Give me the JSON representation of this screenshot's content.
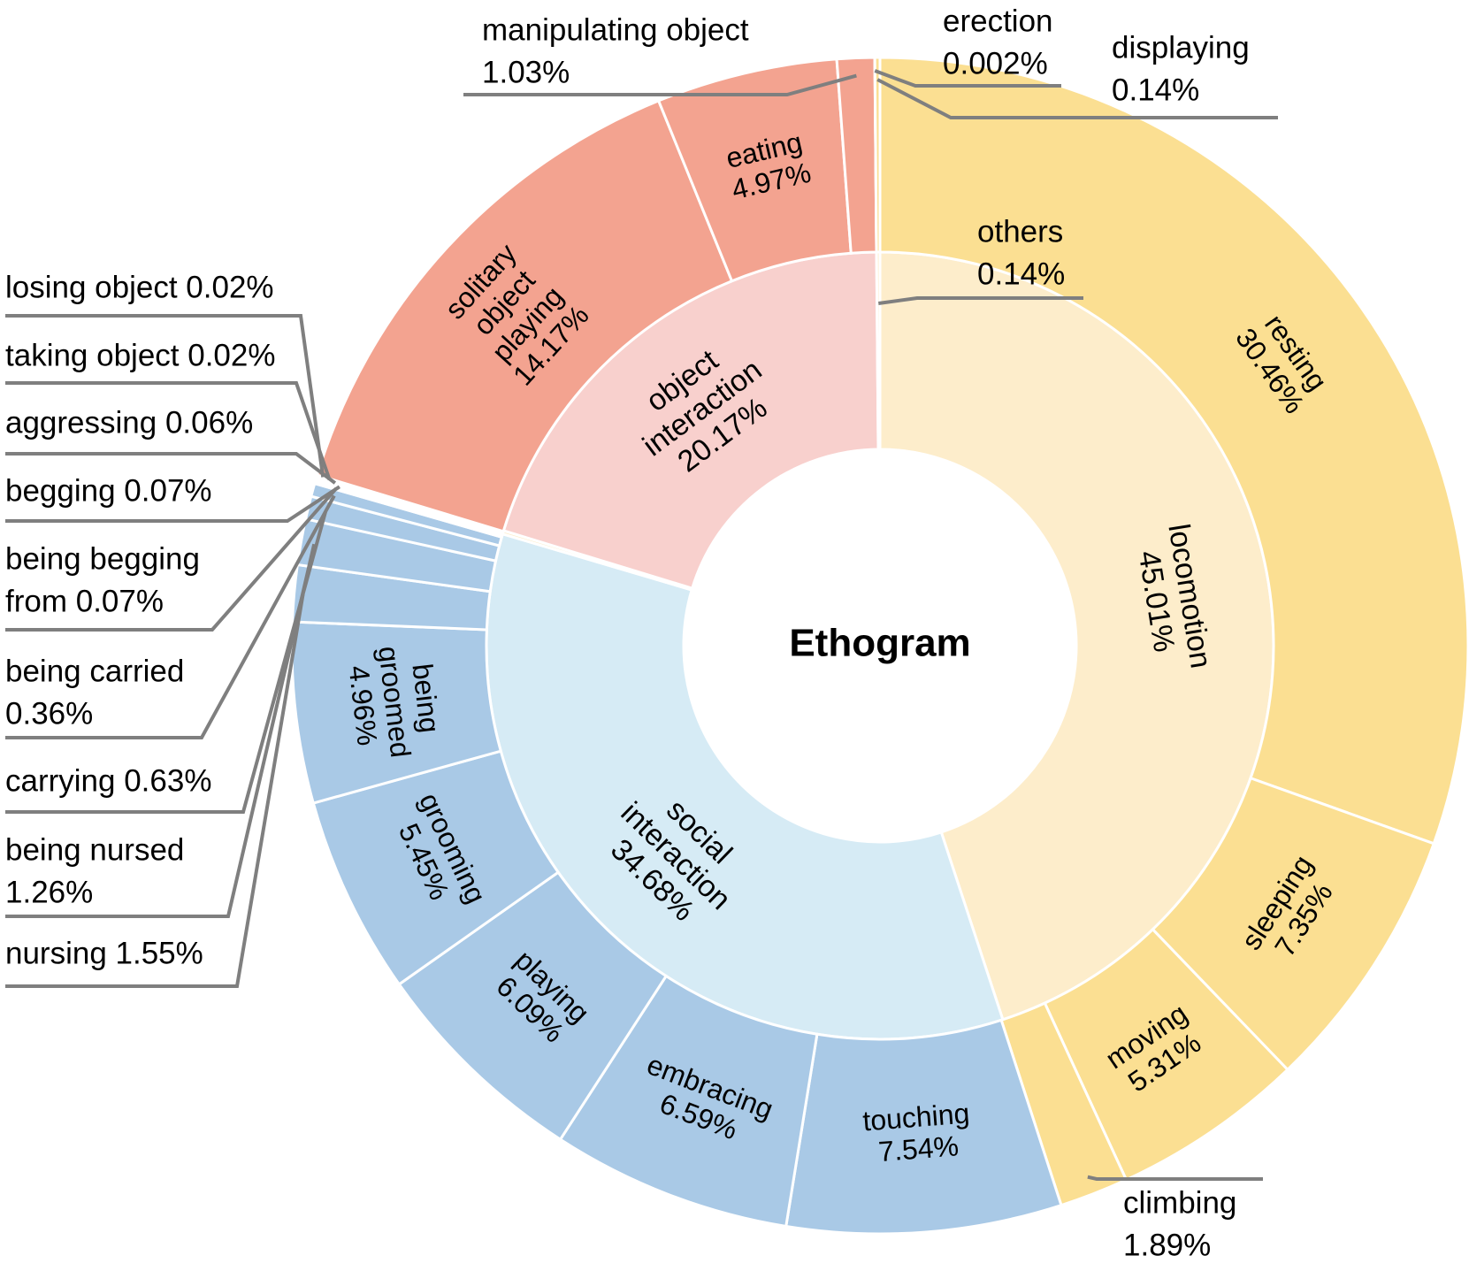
{
  "chart_data": {
    "type": "sunburst",
    "title": "Ethogram",
    "inner_ring": [
      {
        "key": "locomotion",
        "label": [
          "locomotion",
          "45.01%"
        ],
        "value": 45.01,
        "color": "#fdedcb"
      },
      {
        "key": "social",
        "label": [
          "social",
          "interaction",
          "34.68%"
        ],
        "value": 34.68,
        "color": "#d6ebf5"
      },
      {
        "key": "tiny",
        "label": [],
        "value": 0.14,
        "color": "#fdedcb"
      },
      {
        "key": "object",
        "label": [
          "object",
          "interaction",
          "20.17%"
        ],
        "value": 20.17,
        "color": "#f8d0cd"
      },
      {
        "key": "others",
        "label": [],
        "value": 0.14,
        "color": "#fdedcb"
      }
    ],
    "outer_ring": [
      {
        "key": "resting",
        "label": [
          "resting",
          "30.46%"
        ],
        "value": 30.46,
        "color": "#fbdf92"
      },
      {
        "key": "sleeping",
        "label": [
          "sleeping",
          "7.35%"
        ],
        "value": 7.35,
        "color": "#fbdf92"
      },
      {
        "key": "moving",
        "label": [
          "moving",
          "5.31%"
        ],
        "value": 5.31,
        "color": "#fbdf92"
      },
      {
        "key": "climbing",
        "label": [],
        "value": 1.89,
        "color": "#fbdf92"
      },
      {
        "key": "touching",
        "label": [
          "touching",
          "7.54%"
        ],
        "value": 7.54,
        "color": "#a9c9e6"
      },
      {
        "key": "embracing",
        "label": [
          "embracing",
          "6.59%"
        ],
        "value": 6.59,
        "color": "#a9c9e6"
      },
      {
        "key": "playing",
        "label": [
          "playing",
          "6.09%"
        ],
        "value": 6.09,
        "color": "#a9c9e6"
      },
      {
        "key": "grooming",
        "label": [
          "grooming",
          "5.45%"
        ],
        "value": 5.45,
        "color": "#a9c9e6"
      },
      {
        "key": "being_groomed",
        "label": [
          "being",
          "groomed",
          "4.96%"
        ],
        "value": 4.96,
        "color": "#a9c9e6"
      },
      {
        "key": "nursing",
        "label": [],
        "value": 1.55,
        "color": "#a9c9e6"
      },
      {
        "key": "being_nursed",
        "label": [],
        "value": 1.26,
        "color": "#a9c9e6"
      },
      {
        "key": "carrying",
        "label": [],
        "value": 0.63,
        "color": "#a9c9e6"
      },
      {
        "key": "being_carried",
        "label": [],
        "value": 0.36,
        "color": "#a9c9e6"
      },
      {
        "key": "being_begging_from",
        "label": [],
        "value": 0.07,
        "color": "#a9c9e6"
      },
      {
        "key": "begging",
        "label": [],
        "value": 0.07,
        "color": "#a9c9e6"
      },
      {
        "key": "aggressing",
        "label": [],
        "value": 0.06,
        "color": "#a9c9e6"
      },
      {
        "key": "taking_object",
        "label": [],
        "value": 0.02,
        "color": "#f3a390"
      },
      {
        "key": "losing_object",
        "label": [],
        "value": 0.02,
        "color": "#f3a390"
      },
      {
        "key": "solitary",
        "label": [
          "solitary",
          "object",
          "playing",
          "14.17%"
        ],
        "value": 14.17,
        "color": "#f3a390"
      },
      {
        "key": "eating",
        "label": [
          "eating",
          "4.97%"
        ],
        "value": 4.97,
        "color": "#f3a390"
      },
      {
        "key": "manipulating",
        "label": [],
        "value": 1.03,
        "color": "#f3a390"
      },
      {
        "key": "erection",
        "label": [],
        "value": 0.002,
        "color": "#fbdf92"
      },
      {
        "key": "displaying",
        "label": [],
        "value": 0.14,
        "color": "#fbdf92"
      }
    ],
    "callouts": [
      {
        "key": "manipulating",
        "lines": [
          "manipulating object",
          "1.03%"
        ]
      },
      {
        "key": "erection",
        "lines": [
          "erection",
          "0.002%"
        ]
      },
      {
        "key": "displaying",
        "lines": [
          "displaying",
          "0.14%"
        ]
      },
      {
        "key": "others",
        "lines": [
          "others",
          "0.14%"
        ]
      },
      {
        "key": "losing_object",
        "lines": [
          "losing object 0.02%"
        ]
      },
      {
        "key": "taking_object",
        "lines": [
          "taking object 0.02%"
        ]
      },
      {
        "key": "aggressing",
        "lines": [
          "aggressing 0.06%"
        ]
      },
      {
        "key": "begging",
        "lines": [
          "begging 0.07%"
        ]
      },
      {
        "key": "being_begging_from",
        "lines": [
          "being begging",
          "from 0.07%"
        ]
      },
      {
        "key": "being_carried",
        "lines": [
          "being carried",
          "0.36%"
        ]
      },
      {
        "key": "carrying",
        "lines": [
          "carrying 0.63%"
        ]
      },
      {
        "key": "being_nursed",
        "lines": [
          "being nursed",
          "1.26%"
        ]
      },
      {
        "key": "nursing",
        "lines": [
          "nursing 1.55%"
        ]
      },
      {
        "key": "climbing",
        "lines": [
          "climbing",
          "1.89%"
        ]
      }
    ],
    "colors": {
      "leader_line": "#7f7f7f",
      "slice_border": "#ffffff",
      "text": "#000000"
    }
  }
}
